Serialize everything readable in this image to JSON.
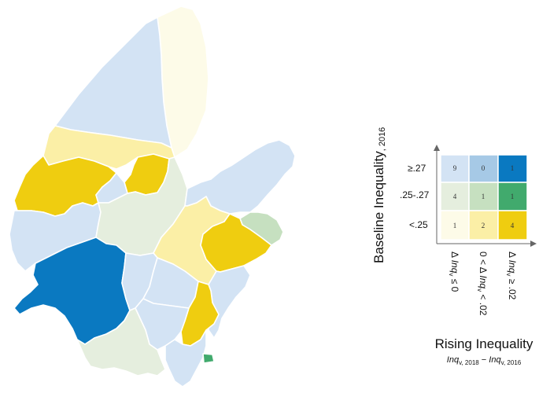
{
  "colors": {
    "inq_low_baseline_low": "#fdfbe8",
    "inq_low_baseline_mid": "#e5eede",
    "inq_low_baseline_high": "#d3e3f4",
    "inq_mid_baseline_low": "#fbefa6",
    "inq_mid_baseline_mid": "#c6e0c0",
    "inq_mid_baseline_high": "#a6c9e6",
    "inq_high_baseline_low": "#efcd10",
    "inq_high_baseline_mid": "#41aa6d",
    "inq_high_baseline_high": "#0a79c1"
  },
  "legend": {
    "y_title": "Baseline Inequality",
    "y_title_sub": ", 2016",
    "x_title": "Rising Inequality",
    "x_formula": {
      "a": "Inq",
      "a_sub": "v, 2018",
      "minus": " − ",
      "b": "Inq",
      "b_sub": "v, 2016"
    },
    "row_labels": [
      "≥.27",
      ".25-.27",
      "<.25"
    ],
    "col_labels": [
      {
        "pre": "Δ ",
        "var": "Inq",
        "sub": "v",
        "post": " ≤ 0"
      },
      {
        "pre": "0 < Δ ",
        "var": "Inq",
        "sub": "v",
        "post": " < .02"
      },
      {
        "pre": "Δ ",
        "var": "Inq",
        "sub": "v",
        "post": " ≥ .02"
      }
    ],
    "counts": [
      [
        "9",
        "0",
        "1"
      ],
      [
        "4",
        "1",
        "1"
      ],
      [
        "1",
        "2",
        "4"
      ]
    ]
  }
}
